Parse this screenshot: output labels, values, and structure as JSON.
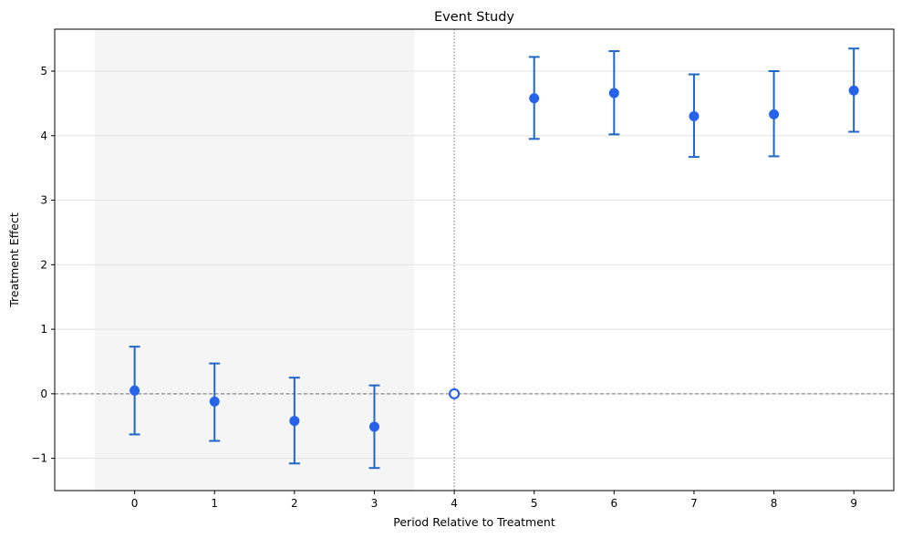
{
  "chart_data": {
    "type": "scatter",
    "title": "Event Study",
    "xlabel": "Period Relative to Treatment",
    "ylabel": "Treatment Effect",
    "xlim": [
      -1,
      9.5
    ],
    "ylim": [
      -1.5,
      5.65
    ],
    "xticks": [
      0,
      1,
      2,
      3,
      4,
      5,
      6,
      7,
      8,
      9
    ],
    "yticks": [
      -1,
      0,
      1,
      2,
      3,
      4,
      5
    ],
    "grid": "horizontal",
    "points": [
      {
        "x": 0,
        "y": 0.05,
        "ci_low": -0.63,
        "ci_high": 0.73
      },
      {
        "x": 1,
        "y": -0.12,
        "ci_low": -0.73,
        "ci_high": 0.47
      },
      {
        "x": 2,
        "y": -0.42,
        "ci_low": -1.08,
        "ci_high": 0.25
      },
      {
        "x": 3,
        "y": -0.51,
        "ci_low": -1.15,
        "ci_high": 0.13
      },
      {
        "x": 5,
        "y": 4.58,
        "ci_low": 3.95,
        "ci_high": 5.22
      },
      {
        "x": 6,
        "y": 4.66,
        "ci_low": 4.02,
        "ci_high": 5.31
      },
      {
        "x": 7,
        "y": 4.3,
        "ci_low": 3.67,
        "ci_high": 4.95
      },
      {
        "x": 8,
        "y": 4.33,
        "ci_low": 3.68,
        "ci_high": 5.0
      },
      {
        "x": 9,
        "y": 4.7,
        "ci_low": 4.06,
        "ci_high": 5.35
      }
    ],
    "reference_point": {
      "x": 4,
      "y": 0
    },
    "shaded_region": [
      -0.5,
      3.5
    ],
    "vertical_line_x": 4,
    "horizontal_line_y": 0,
    "colors": {
      "marker": "#2563eb",
      "errorbar": "#1f66c7",
      "shade": "#f5f5f5",
      "refline": "#8c8c8c",
      "grid": "#e3e3e3"
    }
  }
}
